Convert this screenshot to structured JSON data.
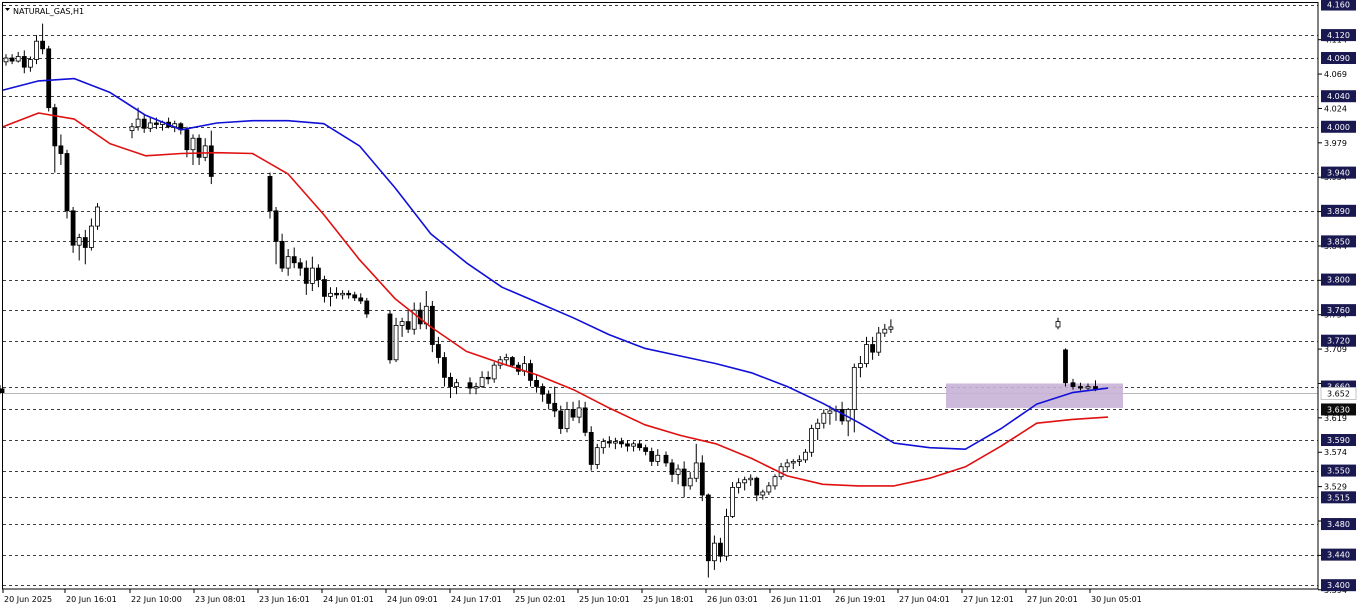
{
  "window": {
    "title": "NATURAL_GAS,H1"
  },
  "chart_data": {
    "type": "candlestick",
    "symbol": "NATURAL_GAS",
    "timeframe": "H1",
    "y_range": [
      3.395,
      4.162
    ],
    "y_tick_labels": [
      "4.114",
      "4.069",
      "4.024",
      "3.979",
      "3.934",
      "3.889",
      "3.844",
      "3.799",
      "3.754",
      "3.709",
      "3.664",
      "3.619",
      "3.574",
      "3.529",
      "3.484",
      "3.439",
      "3.394"
    ],
    "level_labels": [
      "4.160",
      "4.120",
      "4.090",
      "4.040",
      "4.000",
      "3.940",
      "3.890",
      "3.850",
      "3.800",
      "3.760",
      "3.720",
      "3.660",
      "3.630",
      "3.590",
      "3.550",
      "3.515",
      "3.480",
      "3.440",
      "3.400"
    ],
    "level_labels_dark": [
      "3.630"
    ],
    "current_price": "3.652",
    "x_labels": [
      "20 Jun 2025",
      "20 Jun 16:01",
      "22 Jun 10:00",
      "23 Jun 08:01",
      "23 Jun 16:01",
      "24 Jun 01:01",
      "24 Jun 09:01",
      "24 Jun 17:01",
      "25 Jun 02:01",
      "25 Jun 10:01",
      "25 Jun 18:01",
      "26 Jun 03:01",
      "26 Jun 11:01",
      "26 Jun 19:01",
      "27 Jun 04:01",
      "27 Jun 12:01",
      "27 Jun 20:01",
      "30 Jun 05:01"
    ],
    "highlight_zone": [
      3.632,
      3.664
    ],
    "candles": [
      [
        4.085,
        4.095,
        4.08,
        4.09
      ],
      [
        4.09,
        4.095,
        4.082,
        4.086
      ],
      [
        4.086,
        4.098,
        4.084,
        4.092
      ],
      [
        4.092,
        4.1,
        4.07,
        4.078
      ],
      [
        4.078,
        4.092,
        4.072,
        4.088
      ],
      [
        4.088,
        4.12,
        4.082,
        4.112
      ],
      [
        4.112,
        4.135,
        4.095,
        4.102
      ],
      [
        4.102,
        4.106,
        4.02,
        4.025
      ],
      [
        4.025,
        4.03,
        3.94,
        3.975
      ],
      [
        3.975,
        3.99,
        3.95,
        3.965
      ],
      [
        3.965,
        3.97,
        3.88,
        3.89
      ],
      [
        3.89,
        3.895,
        3.835,
        3.845
      ],
      [
        3.845,
        3.86,
        3.825,
        3.855
      ],
      [
        3.855,
        3.865,
        3.82,
        3.842
      ],
      [
        3.842,
        3.88,
        3.838,
        3.87
      ],
      [
        3.87,
        3.9,
        3.865,
        3.895
      ],
      [
        3.995,
        4.005,
        3.985,
        4.0
      ],
      [
        4.0,
        4.025,
        3.995,
        4.01
      ],
      [
        4.01,
        4.015,
        3.992,
        3.998
      ],
      [
        3.998,
        4.012,
        3.993,
        4.005
      ],
      [
        4.005,
        4.012,
        3.997,
        4.003
      ],
      [
        4.003,
        4.008,
        3.995,
        4.006
      ],
      [
        4.006,
        4.012,
        3.998,
        4.0
      ],
      [
        4.0,
        4.008,
        3.993,
        4.004
      ],
      [
        4.004,
        4.006,
        3.99,
        3.996
      ],
      [
        3.996,
        4.0,
        3.96,
        3.97
      ],
      [
        3.97,
        3.99,
        3.95,
        3.985
      ],
      [
        3.985,
        3.99,
        3.95,
        3.96
      ],
      [
        3.96,
        3.985,
        3.955,
        3.975
      ],
      [
        3.975,
        3.995,
        3.925,
        3.935
      ],
      [
        3.935,
        3.94,
        3.88,
        3.89
      ],
      [
        3.89,
        3.895,
        3.82,
        3.85
      ],
      [
        3.85,
        3.86,
        3.81,
        3.815
      ],
      [
        3.815,
        3.84,
        3.805,
        3.83
      ],
      [
        3.83,
        3.842,
        3.815,
        3.822
      ],
      [
        3.822,
        3.828,
        3.805,
        3.815
      ],
      [
        3.815,
        3.825,
        3.78,
        3.795
      ],
      [
        3.795,
        3.83,
        3.785,
        3.815
      ],
      [
        3.815,
        3.82,
        3.79,
        3.8
      ],
      [
        3.8,
        3.805,
        3.77,
        3.778
      ],
      [
        3.778,
        3.79,
        3.765,
        3.782
      ],
      [
        3.782,
        3.79,
        3.775,
        3.78
      ],
      [
        3.78,
        3.786,
        3.774,
        3.782
      ],
      [
        3.782,
        3.786,
        3.775,
        3.78
      ],
      [
        3.78,
        3.784,
        3.772,
        3.776
      ],
      [
        3.776,
        3.782,
        3.768,
        3.772
      ],
      [
        3.772,
        3.776,
        3.75,
        3.755
      ],
      [
        3.755,
        3.76,
        3.69,
        3.695
      ],
      [
        3.695,
        3.75,
        3.692,
        3.74
      ],
      [
        3.74,
        3.75,
        3.725,
        3.745
      ],
      [
        3.745,
        3.76,
        3.73,
        3.735
      ],
      [
        3.735,
        3.77,
        3.728,
        3.76
      ],
      [
        3.76,
        3.77,
        3.735,
        3.742
      ],
      [
        3.742,
        3.785,
        3.735,
        3.765
      ],
      [
        3.765,
        3.772,
        3.705,
        3.715
      ],
      [
        3.715,
        3.725,
        3.69,
        3.698
      ],
      [
        3.698,
        3.705,
        3.66,
        3.672
      ],
      [
        3.672,
        3.678,
        3.645,
        3.66
      ],
      [
        3.66,
        3.67,
        3.65,
        3.665
      ],
      [
        3.665,
        3.672,
        3.65,
        3.658
      ],
      [
        3.658,
        3.665,
        3.65,
        3.66
      ],
      [
        3.66,
        3.68,
        3.658,
        3.672
      ],
      [
        3.672,
        3.68,
        3.663,
        3.67
      ],
      [
        3.67,
        3.692,
        3.665,
        3.688
      ],
      [
        3.688,
        3.7,
        3.683,
        3.695
      ],
      [
        3.695,
        3.703,
        3.688,
        3.698
      ],
      [
        3.698,
        3.7,
        3.685,
        3.688
      ],
      [
        3.688,
        3.692,
        3.675,
        3.68
      ],
      [
        3.68,
        3.7,
        3.674,
        3.69
      ],
      [
        3.69,
        3.695,
        3.66,
        3.668
      ],
      [
        3.668,
        3.676,
        3.652,
        3.66
      ],
      [
        3.66,
        3.664,
        3.64,
        3.65
      ],
      [
        3.65,
        3.655,
        3.63,
        3.638
      ],
      [
        3.638,
        3.66,
        3.62,
        3.628
      ],
      [
        3.628,
        3.635,
        3.598,
        3.605
      ],
      [
        3.605,
        3.64,
        3.6,
        3.63
      ],
      [
        3.63,
        3.64,
        3.615,
        3.62
      ],
      [
        3.62,
        3.642,
        3.612,
        3.632
      ],
      [
        3.632,
        3.64,
        3.595,
        3.6
      ],
      [
        3.6,
        3.608,
        3.55,
        3.558
      ],
      [
        3.558,
        3.585,
        3.552,
        3.58
      ],
      [
        3.58,
        3.592,
        3.572,
        3.588
      ],
      [
        3.588,
        3.595,
        3.58,
        3.586
      ],
      [
        3.586,
        3.593,
        3.578,
        3.588
      ],
      [
        3.588,
        3.593,
        3.58,
        3.585
      ],
      [
        3.585,
        3.59,
        3.575,
        3.582
      ],
      [
        3.582,
        3.588,
        3.575,
        3.585
      ],
      [
        3.585,
        3.59,
        3.576,
        3.58
      ],
      [
        3.58,
        3.584,
        3.57,
        3.575
      ],
      [
        3.575,
        3.58,
        3.556,
        3.562
      ],
      [
        3.562,
        3.578,
        3.556,
        3.57
      ],
      [
        3.57,
        3.575,
        3.555,
        3.56
      ],
      [
        3.56,
        3.565,
        3.535,
        3.545
      ],
      [
        3.545,
        3.558,
        3.532,
        3.552
      ],
      [
        3.552,
        3.562,
        3.515,
        3.53
      ],
      [
        3.53,
        3.548,
        3.525,
        3.54
      ],
      [
        3.54,
        3.585,
        3.535,
        3.56
      ],
      [
        3.56,
        3.57,
        3.51,
        3.518
      ],
      [
        3.518,
        3.52,
        3.41,
        3.432
      ],
      [
        3.432,
        3.465,
        3.42,
        3.455
      ],
      [
        3.455,
        3.462,
        3.43,
        3.438
      ],
      [
        3.438,
        3.5,
        3.432,
        3.49
      ],
      [
        3.49,
        3.535,
        3.488,
        3.528
      ],
      [
        3.528,
        3.54,
        3.52,
        3.534
      ],
      [
        3.534,
        3.542,
        3.524,
        3.538
      ],
      [
        3.538,
        3.545,
        3.53,
        3.54
      ],
      [
        3.54,
        3.542,
        3.51,
        3.518
      ],
      [
        3.518,
        3.525,
        3.512,
        3.522
      ],
      [
        3.522,
        3.535,
        3.518,
        3.53
      ],
      [
        3.53,
        3.545,
        3.525,
        3.542
      ],
      [
        3.542,
        3.56,
        3.538,
        3.555
      ],
      [
        3.555,
        3.565,
        3.548,
        3.56
      ],
      [
        3.56,
        3.565,
        3.552,
        3.562
      ],
      [
        3.562,
        3.57,
        3.556,
        3.564
      ],
      [
        3.564,
        3.578,
        3.56,
        3.574
      ],
      [
        3.574,
        3.61,
        3.568,
        3.605
      ],
      [
        3.605,
        3.618,
        3.59,
        3.612
      ],
      [
        3.612,
        3.63,
        3.605,
        3.625
      ],
      [
        3.625,
        3.635,
        3.61,
        3.628
      ],
      [
        3.628,
        3.635,
        3.615,
        3.63
      ],
      [
        3.63,
        3.64,
        3.61,
        3.615
      ],
      [
        3.615,
        3.632,
        3.595,
        3.63
      ],
      [
        3.63,
        3.69,
        3.6,
        3.685
      ],
      [
        3.685,
        3.7,
        3.672,
        3.69
      ],
      [
        3.69,
        3.725,
        3.685,
        3.715
      ],
      [
        3.715,
        3.725,
        3.695,
        3.705
      ],
      [
        3.705,
        3.738,
        3.7,
        3.73
      ],
      [
        3.73,
        3.742,
        3.725,
        3.735
      ],
      [
        3.735,
        3.748,
        3.73,
        3.738
      ],
      [
        3.738,
        3.75,
        3.735,
        3.745
      ],
      [
        3.708,
        3.71,
        3.66,
        3.665
      ],
      [
        3.665,
        3.67,
        3.656,
        3.66
      ],
      [
        3.66,
        3.665,
        3.655,
        3.658
      ],
      [
        3.658,
        3.664,
        3.655,
        3.66
      ],
      [
        3.66,
        3.668,
        3.654,
        3.657
      ],
      [
        3.657,
        3.662,
        3.65,
        3.652
      ]
    ],
    "ma_blue": [
      4.048,
      4.06,
      4.063,
      4.045,
      4.015,
      3.996,
      4.005,
      4.008,
      4.008,
      4.004,
      3.975,
      3.92,
      3.86,
      3.822,
      3.79,
      3.77,
      3.75,
      3.728,
      3.71,
      3.7,
      3.69,
      3.678,
      3.66,
      3.638,
      3.613,
      3.586,
      3.58,
      3.578,
      3.605,
      3.637,
      3.652,
      3.658
    ],
    "ma_red": [
      4.0,
      4.018,
      4.01,
      3.978,
      3.962,
      3.965,
      3.966,
      3.965,
      3.938,
      3.885,
      3.826,
      3.775,
      3.738,
      3.706,
      3.69,
      3.675,
      3.656,
      3.632,
      3.61,
      3.596,
      3.585,
      3.566,
      3.543,
      3.532,
      3.53,
      3.53,
      3.54,
      3.555,
      3.582,
      3.612,
      3.617,
      3.62
    ]
  }
}
